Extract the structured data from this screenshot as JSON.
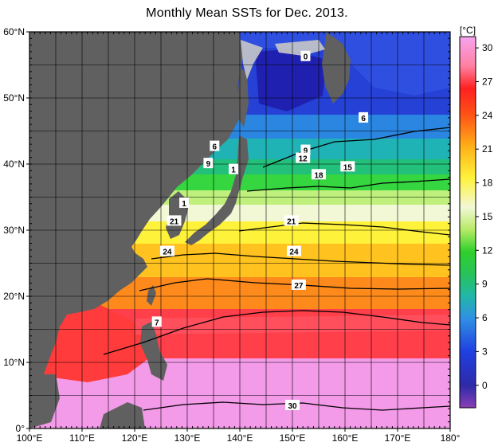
{
  "title": "Monthly Mean SSTs for Dec. 2013.",
  "colorbar": {
    "unit": "[°C]",
    "ticks": [
      0,
      3,
      6,
      9,
      12,
      15,
      18,
      21,
      24,
      27,
      30
    ],
    "tick_labels": [
      "0",
      "3",
      "6",
      "9",
      "12",
      "15",
      "18",
      "21",
      "24",
      "27",
      "30"
    ],
    "range": [
      -2,
      31
    ]
  },
  "chart_data": {
    "type": "heatmap",
    "title": "Monthly Mean SSTs for Dec. 2013.",
    "xlabel": "",
    "ylabel": "",
    "xlim": [
      100,
      180
    ],
    "ylim": [
      0,
      60
    ],
    "x_ticks": [
      100,
      110,
      120,
      130,
      140,
      150,
      160,
      170,
      180
    ],
    "x_tick_labels": [
      "100°E",
      "110°E",
      "120°E",
      "130°E",
      "140°E",
      "150°E",
      "160°E",
      "170°E",
      "180°"
    ],
    "y_ticks": [
      0,
      10,
      20,
      30,
      40,
      50,
      60
    ],
    "y_tick_labels": [
      "0°",
      "10°N",
      "20°N",
      "30°N",
      "40°N",
      "50°N",
      "60°N"
    ],
    "grid": true,
    "value_unit": "°C",
    "contour_labels": [
      {
        "text": "0",
        "lon": 152.5,
        "lat": 56.3
      },
      {
        "text": "6",
        "lon": 163.5,
        "lat": 47.0
      },
      {
        "text": "6",
        "lon": 135.2,
        "lat": 42.7
      },
      {
        "text": "9",
        "lon": 152.5,
        "lat": 42.1
      },
      {
        "text": "9",
        "lon": 134.0,
        "lat": 40.1
      },
      {
        "text": "12",
        "lon": 152.0,
        "lat": 40.9
      },
      {
        "text": "15",
        "lon": 160.5,
        "lat": 39.6
      },
      {
        "text": "18",
        "lon": 155.0,
        "lat": 38.4
      },
      {
        "text": "1",
        "lon": 138.8,
        "lat": 39.2
      },
      {
        "text": "1",
        "lon": 129.4,
        "lat": 34.1
      },
      {
        "text": "21",
        "lon": 127.5,
        "lat": 31.4
      },
      {
        "text": "21",
        "lon": 149.8,
        "lat": 31.4
      },
      {
        "text": "24",
        "lon": 126.2,
        "lat": 26.8
      },
      {
        "text": "24",
        "lon": 150.3,
        "lat": 26.8
      },
      {
        "text": "27",
        "lon": 151.2,
        "lat": 21.7
      },
      {
        "text": "7",
        "lon": 124.2,
        "lat": 16.1
      },
      {
        "text": "30",
        "lon": 150.0,
        "lat": 3.5
      }
    ]
  },
  "colors": {
    "land": "#606060",
    "frame": "#000000"
  }
}
